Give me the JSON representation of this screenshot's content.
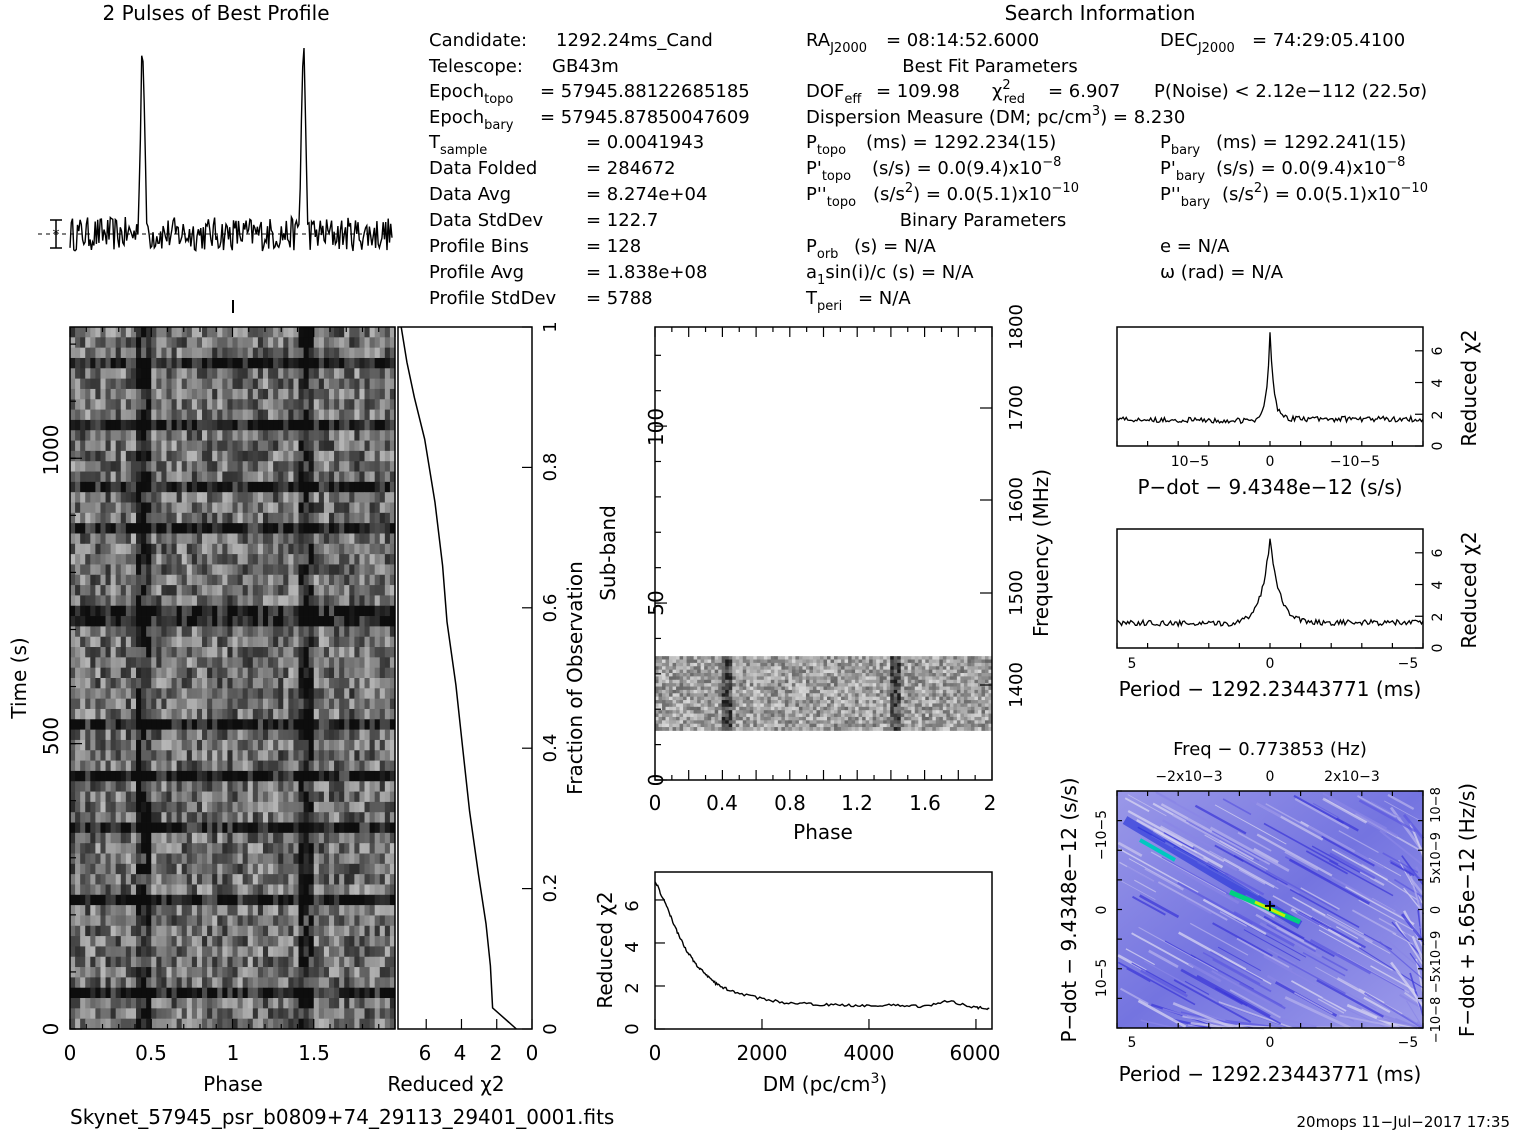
{
  "header": {
    "profile_title": "2 Pulses of Best Profile",
    "search_title": "Search Information",
    "best_fit_title": "Best Fit Parameters",
    "binary_title": "Binary Parameters"
  },
  "info_left": [
    {
      "label": "Candidate:",
      "value": "1292.24ms_Cand"
    },
    {
      "label": "Telescope:",
      "value": "GB43m"
    },
    {
      "label": "Epoch",
      "sub": "topo",
      "value": "= 57945.88122685185"
    },
    {
      "label": "Epoch",
      "sub": "bary",
      "value": "= 57945.87850047609"
    },
    {
      "label": "T",
      "sub": "sample",
      "value": "=  0.0041943"
    },
    {
      "label": "Data Folded",
      "value": "=  284672"
    },
    {
      "label": "Data Avg",
      "value": "=  8.274e+04"
    },
    {
      "label": "Data StdDev",
      "value": "=  122.7"
    },
    {
      "label": "Profile Bins",
      "value": "=  128"
    },
    {
      "label": "Profile Avg",
      "value": "=  1.838e+08"
    },
    {
      "label": "Profile StdDev",
      "value": "=  5788"
    }
  ],
  "search_info": {
    "ra": "= 08:14:52.6000",
    "dec": "= 74:29:05.4100",
    "dof": "= 109.98",
    "chi2": "= 6.907",
    "pnoise": "P(Noise) < 2.12e−112   (22.5σ)",
    "dm": "Dispersion Measure (DM; pc/cm",
    "dm_value": ") = 8.230",
    "ptopo": "(ms) =  1292.234(15)",
    "pbary": "(ms) =  1292.241(15)",
    "pdtopo": "(s/s) = 0.0(9.4)x10",
    "pdbary": "(s/s) = 0.0(9.4)x10",
    "pddtopo": ") = 0.0(5.1)x10",
    "pddbary": ") = 0.0(5.1)x10",
    "porb": "(s) = N/A",
    "a1": "a",
    "a1_rest": "sin(i)/c (s) = N/A",
    "tperi": "= N/A",
    "e": "e = N/A",
    "omega": "ω (rad) = N/A"
  },
  "footer": {
    "filename": "Skynet_57945_psr_b0809+74_29113_29401_0001.fits",
    "stamp": "20mops  11−Jul−2017 17:35"
  },
  "chart_data": [
    {
      "type": "line",
      "title": "2 Pulses of Best Profile",
      "xlim": [
        0,
        2
      ],
      "series": [
        {
          "values_desc": "two sharp pulse peaks at phase ~0.45 and ~1.45 over noisy baseline"
        }
      ],
      "peaks_phase": [
        0.45,
        1.45
      ]
    },
    {
      "type": "heatmap",
      "xlabel": "Phase",
      "ylabel": "Time (s)",
      "xlim": [
        0,
        2
      ],
      "ylim": [
        0,
        1230
      ],
      "xticks": [
        "0",
        "0.5",
        "1",
        "1.5"
      ],
      "yticks": [
        "0",
        "500",
        "1000"
      ]
    },
    {
      "type": "line",
      "xlabel": "Reduced χ2",
      "ylabel": "Fraction of Observation",
      "xticks": [
        "6",
        "4",
        "2",
        "0"
      ],
      "yticks": [
        "0",
        "0.2",
        "0.4",
        "0.6",
        "0.8",
        "1"
      ],
      "x": [
        0.9,
        2.2,
        2.4,
        2.6,
        3.0,
        3.5,
        3.9,
        4.3,
        4.8,
        5.1,
        5.5,
        6.1,
        6.7,
        7.1,
        7.4
      ],
      "y": [
        0,
        0.03,
        0.09,
        0.15,
        0.22,
        0.31,
        0.4,
        0.49,
        0.58,
        0.66,
        0.75,
        0.84,
        0.9,
        0.95,
        1.0
      ]
    },
    {
      "type": "heatmap",
      "xlabel": "Phase",
      "ylabel": "Sub-band",
      "y2label": "Frequency (MHz)",
      "xlim": [
        0,
        2
      ],
      "ylim": [
        0,
        128
      ],
      "xticks": [
        "0",
        "0.4",
        "0.8",
        "1.2",
        "1.6",
        "2"
      ],
      "yticks": [
        "0",
        "50",
        "100"
      ],
      "y2ticks": [
        "1400",
        "1500",
        "1600",
        "1700",
        "1800"
      ],
      "band_subbands": [
        14,
        35
      ]
    },
    {
      "type": "line",
      "xlabel": "DM (pc/cm3)",
      "ylabel": "Reduced χ2",
      "xlim": [
        0,
        6300
      ],
      "ylim": [
        0,
        7.3
      ],
      "xticks": [
        "0",
        "2000",
        "4000",
        "6000"
      ],
      "yticks": [
        "0",
        "2",
        "4",
        "6"
      ],
      "x": [
        0,
        200,
        400,
        600,
        800,
        1000,
        1200,
        1500,
        2000,
        2500,
        3000,
        3500,
        4000,
        4500,
        5000,
        5500,
        6000,
        6250
      ],
      "y": [
        6.9,
        5.8,
        4.6,
        3.6,
        2.9,
        2.4,
        2.0,
        1.7,
        1.4,
        1.2,
        1.15,
        1.1,
        1.1,
        1.1,
        1.05,
        1.3,
        1.0,
        0.95
      ]
    },
    {
      "type": "line",
      "xlabel": "P−dot − 9.4348e−12 (s/s)",
      "ylabel": "Reduced χ2",
      "xticks": [
        "10−5",
        "0",
        "−10−5"
      ],
      "yticks": [
        "0",
        "2",
        "4",
        "6"
      ],
      "ylim": [
        0,
        7.5
      ],
      "peak": 7.1,
      "baseline": 1.7
    },
    {
      "type": "line",
      "xlabel": "Period − 1292.23443771 (ms)",
      "ylabel": "Reduced χ2",
      "xticks": [
        "5",
        "0",
        "−5"
      ],
      "yticks": [
        "0",
        "2",
        "4",
        "6"
      ],
      "ylim": [
        0,
        7.5
      ],
      "peak": 7.0,
      "baseline": 1.6
    },
    {
      "type": "heatmap",
      "title": "Freq − 0.773853 (Hz)",
      "xlabel": "Period − 1292.23443771 (ms)",
      "ylabel": "P−dot − 9.4348e−12 (s/s)",
      "y2label": "F−dot + 5.65e−12 (Hz/s)",
      "xticks": [
        "5",
        "0",
        "−5"
      ],
      "top_ticks": [
        "−2x10−3",
        "0",
        "2x10−3"
      ],
      "yticks": [
        "10−5",
        "0",
        "−10−5"
      ],
      "y2ticks": [
        "−10−8",
        "−5x10−9",
        "0",
        "5x10−9",
        "10−8"
      ]
    }
  ]
}
